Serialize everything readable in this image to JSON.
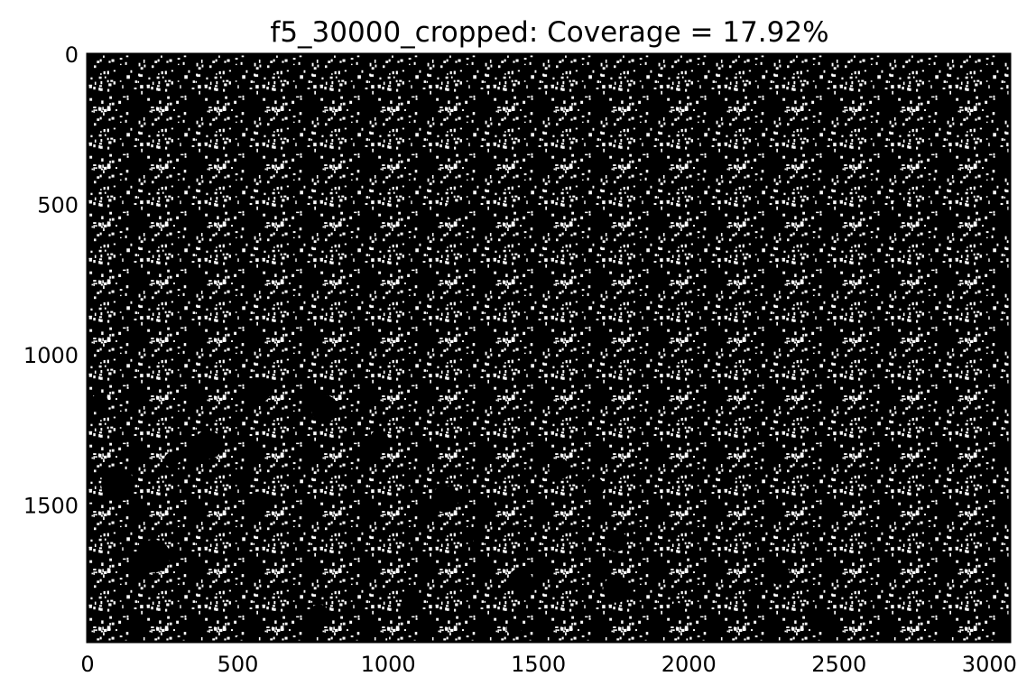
{
  "chart_data": {
    "type": "heatmap",
    "title": "f5_30000_cropped: Coverage = 17.92%",
    "xlabel": "",
    "ylabel": "",
    "colormap": "binary (black background, white coverage)",
    "background_color": "#000000",
    "foreground_color": "#ffffff",
    "coverage_percent": 17.92,
    "xlim": [
      0,
      3068
    ],
    "ylim": [
      1955,
      0
    ],
    "xticks": [
      0,
      500,
      1000,
      1500,
      2000,
      2500,
      3000
    ],
    "yticks": [
      0,
      500,
      1000,
      1500
    ],
    "y_inverted": true,
    "grid": false,
    "dark_voids": [
      {
        "x": 100,
        "y": 1430,
        "r": 55
      },
      {
        "x": 220,
        "y": 1670,
        "r": 55
      },
      {
        "x": 400,
        "y": 1300,
        "r": 48
      },
      {
        "x": 570,
        "y": 1120,
        "r": 40
      },
      {
        "x": 790,
        "y": 1180,
        "r": 45
      },
      {
        "x": 1190,
        "y": 1480,
        "r": 45
      },
      {
        "x": 1080,
        "y": 1820,
        "r": 35
      },
      {
        "x": 1440,
        "y": 1750,
        "r": 40
      },
      {
        "x": 1760,
        "y": 1780,
        "r": 45
      },
      {
        "x": 1760,
        "y": 1620,
        "r": 35
      },
      {
        "x": 1570,
        "y": 1380,
        "r": 35
      },
      {
        "x": 1690,
        "y": 1440,
        "r": 30
      },
      {
        "x": 2300,
        "y": 1730,
        "r": 35
      },
      {
        "x": 2430,
        "y": 1880,
        "r": 30
      },
      {
        "x": 570,
        "y": 1490,
        "r": 35
      },
      {
        "x": 40,
        "y": 1160,
        "r": 30
      },
      {
        "x": 970,
        "y": 1280,
        "r": 30
      },
      {
        "x": 770,
        "y": 1860,
        "r": 30
      },
      {
        "x": 1220,
        "y": 520,
        "r": 30
      },
      {
        "x": 2210,
        "y": 1810,
        "r": 25
      },
      {
        "x": 1960,
        "y": 1850,
        "r": 25
      },
      {
        "x": 1300,
        "y": 1600,
        "r": 25
      },
      {
        "x": 2130,
        "y": 1420,
        "r": 25
      },
      {
        "x": 530,
        "y": 1410,
        "r": 25
      },
      {
        "x": 1420,
        "y": 1910,
        "r": 25
      },
      {
        "x": 1330,
        "y": 1500,
        "r": 25
      },
      {
        "x": 2700,
        "y": 500,
        "r": 20
      },
      {
        "x": 280,
        "y": 1350,
        "r": 25
      }
    ]
  }
}
